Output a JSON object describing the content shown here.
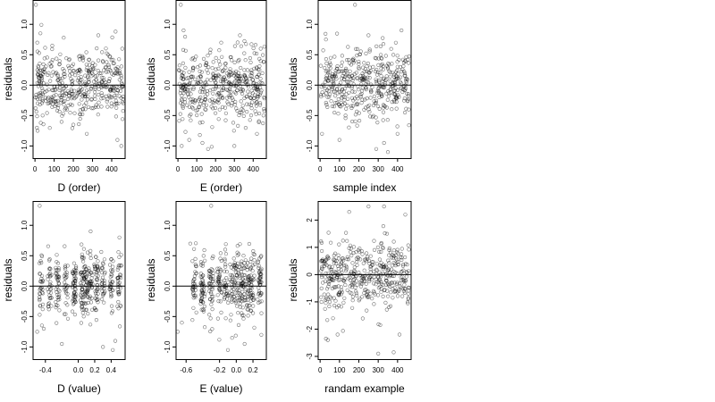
{
  "charts": [
    {
      "type": "scatter",
      "xlabel": "D (order)",
      "ylabel": "residuals",
      "xlim": [
        -10,
        470
      ],
      "ylim": [
        -1.2,
        1.4
      ],
      "xticks": [
        "0",
        "100",
        "200",
        "300",
        "400"
      ],
      "xtick_values": [
        0,
        100,
        200,
        300,
        400
      ],
      "yticks": [
        "-1.0",
        "-0.5",
        "0.0",
        "0.5",
        "1.0"
      ],
      "ytick_values": [
        -1.0,
        -0.5,
        0.0,
        0.5,
        1.0
      ],
      "hline": 0,
      "n_points": 440,
      "y_spread": 0.45,
      "seed": 11,
      "points": [
        [
          5,
          1.32
        ],
        [
          10,
          -0.7
        ],
        [
          12,
          0.7
        ],
        [
          14,
          -0.75
        ],
        [
          30,
          -0.62
        ],
        [
          40,
          -0.5
        ],
        [
          90,
          0.65
        ],
        [
          150,
          0.78
        ],
        [
          200,
          -0.65
        ],
        [
          270,
          -0.8
        ],
        [
          330,
          0.82
        ],
        [
          420,
          0.88
        ],
        [
          430,
          -0.9
        ],
        [
          450,
          -1.0
        ],
        [
          455,
          0.6
        ],
        [
          460,
          -0.3
        ]
      ]
    },
    {
      "type": "scatter",
      "xlabel": "E (order)",
      "ylabel": "residuals",
      "xlim": [
        -10,
        470
      ],
      "ylim": [
        -1.2,
        1.4
      ],
      "xticks": [
        "0",
        "100",
        "200",
        "300",
        "400"
      ],
      "xtick_values": [
        0,
        100,
        200,
        300,
        400
      ],
      "yticks": [
        "-1.0",
        "-0.5",
        "0.0",
        "0.5",
        "1.0"
      ],
      "ytick_values": [
        -1.0,
        -0.5,
        0.0,
        0.5,
        1.0
      ],
      "hline": 0,
      "n_points": 440,
      "y_spread": 0.45,
      "seed": 23,
      "points": [
        [
          15,
          1.32
        ],
        [
          20,
          -1.0
        ],
        [
          30,
          0.9
        ],
        [
          60,
          -0.9
        ],
        [
          130,
          -0.95
        ],
        [
          160,
          -1.05
        ],
        [
          230,
          0.7
        ],
        [
          300,
          -1.0
        ],
        [
          330,
          0.82
        ],
        [
          420,
          -0.8
        ],
        [
          440,
          0.6
        ],
        [
          455,
          -0.5
        ]
      ]
    },
    {
      "type": "scatter",
      "xlabel": "sample index",
      "ylabel": "residuals",
      "xlim": [
        -10,
        470
      ],
      "ylim": [
        -1.2,
        1.4
      ],
      "xticks": [
        "0",
        "100",
        "200",
        "300",
        "400"
      ],
      "xtick_values": [
        0,
        100,
        200,
        300,
        400
      ],
      "yticks": [
        "-1.0",
        "-0.5",
        "0.0",
        "0.5",
        "1.0"
      ],
      "ytick_values": [
        -1.0,
        -0.5,
        0.0,
        0.5,
        1.0
      ],
      "hline": 0,
      "n_points": 440,
      "y_spread": 0.45,
      "seed": 37,
      "points": [
        [
          180,
          1.32
        ],
        [
          10,
          -0.8
        ],
        [
          100,
          -0.9
        ],
        [
          290,
          -1.05
        ],
        [
          330,
          -0.95
        ],
        [
          350,
          -1.1
        ],
        [
          400,
          -0.8
        ],
        [
          420,
          0.9
        ],
        [
          30,
          0.75
        ],
        [
          250,
          0.82
        ]
      ]
    },
    {
      "type": "scatter",
      "xlabel": "D (value)",
      "ylabel": "residuals",
      "xlim": [
        -0.55,
        0.57
      ],
      "ylim": [
        -1.2,
        1.4
      ],
      "xticks": [
        "-0.4",
        "0.0",
        "0.2",
        "0.4"
      ],
      "xtick_values": [
        -0.4,
        0.0,
        0.2,
        0.4
      ],
      "yticks": [
        "-1.0",
        "-0.5",
        "0.0",
        "0.5",
        "1.0"
      ],
      "ytick_values": [
        -1.0,
        -0.5,
        0.0,
        0.5,
        1.0
      ],
      "hline": 0,
      "n_points": 440,
      "y_spread": 0.42,
      "x_columns": [
        -0.45,
        -0.35,
        -0.25,
        -0.15,
        -0.05,
        0.05,
        0.1,
        0.15,
        0.22,
        0.3,
        0.4,
        0.5
      ],
      "seed": 51,
      "points": [
        [
          -0.47,
          1.32
        ],
        [
          -0.5,
          -0.75
        ],
        [
          -0.42,
          -0.7
        ],
        [
          0.5,
          0.8
        ],
        [
          0.42,
          -1.05
        ],
        [
          0.45,
          -0.9
        ],
        [
          0.3,
          -1.0
        ],
        [
          -0.2,
          -0.95
        ],
        [
          0.15,
          0.9
        ]
      ]
    },
    {
      "type": "scatter",
      "xlabel": "E (value)",
      "ylabel": "residuals",
      "xlim": [
        -0.72,
        0.36
      ],
      "ylim": [
        -1.2,
        1.4
      ],
      "xticks": [
        "-0.6",
        "-0.2",
        "0.0",
        "0.2"
      ],
      "xtick_values": [
        -0.6,
        -0.2,
        0.0,
        0.2
      ],
      "yticks": [
        "-1.0",
        "-0.5",
        "0.0",
        "0.5",
        "1.0"
      ],
      "ytick_values": [
        -1.0,
        -0.5,
        0.0,
        0.5,
        1.0
      ],
      "hline": 0,
      "n_points": 440,
      "y_spread": 0.42,
      "x_columns": [
        -0.5,
        -0.4,
        -0.3,
        -0.2,
        -0.12,
        -0.05,
        0.0,
        0.05,
        0.1,
        0.15,
        0.2,
        0.28
      ],
      "seed": 67,
      "points": [
        [
          -0.3,
          1.32
        ],
        [
          -0.7,
          -0.75
        ],
        [
          -0.65,
          -0.6
        ],
        [
          -0.55,
          0.7
        ],
        [
          -0.1,
          -1.05
        ],
        [
          0.3,
          -0.8
        ],
        [
          0.1,
          -0.95
        ],
        [
          -0.05,
          -0.85
        ]
      ]
    },
    {
      "type": "scatter",
      "xlabel": "randam example",
      "ylabel": "residuals",
      "xlim": [
        -10,
        470
      ],
      "ylim": [
        -3.1,
        2.7
      ],
      "xticks": [
        "0",
        "100",
        "200",
        "300",
        "400"
      ],
      "xtick_values": [
        0,
        100,
        200,
        300,
        400
      ],
      "yticks": [
        "-3",
        "-2",
        "-1",
        "0",
        "1",
        "2"
      ],
      "ytick_values": [
        -3,
        -2,
        -1,
        0,
        1,
        2
      ],
      "hline": 0,
      "n_points": 440,
      "y_spread": 1.0,
      "seed": 83,
      "points": [
        [
          30,
          -2.35
        ],
        [
          40,
          -2.4
        ],
        [
          300,
          -2.9
        ],
        [
          380,
          -2.85
        ],
        [
          440,
          2.2
        ],
        [
          250,
          2.5
        ],
        [
          330,
          2.5
        ],
        [
          150,
          2.3
        ],
        [
          90,
          -2.2
        ],
        [
          410,
          -2.2
        ]
      ]
    }
  ]
}
